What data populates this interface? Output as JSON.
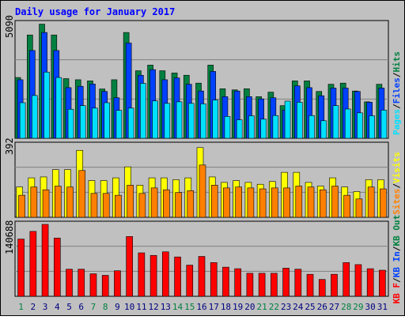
{
  "title": "Daily usage for January 2017",
  "colors": {
    "background": "#c0c0c0",
    "border": "#000000",
    "title_text": "#0000ff",
    "hits": "#008040",
    "files": "#0040ff",
    "pages": "#00e0ff",
    "visits": "#ffff00",
    "sites": "#ff8000",
    "kbf": "#ff0000",
    "weekend_label": "#008040",
    "weekday_label": "#000080"
  },
  "panels": {
    "top": {
      "max_label": "5090",
      "legend": [
        "Pages",
        "Files",
        "Hits"
      ],
      "sep": "/"
    },
    "middle": {
      "max_label": "392",
      "legend": [
        "Sites",
        "Visits"
      ],
      "sep": "/"
    },
    "bottom": {
      "max_label": "140688",
      "legend": [
        "KB F",
        "KB In",
        "KB Out"
      ],
      "sep": "/"
    }
  },
  "chart_data": {
    "type": "bar",
    "title": "Daily usage for January 2017",
    "categories": [
      "1",
      "2",
      "3",
      "4",
      "5",
      "6",
      "7",
      "8",
      "9",
      "10",
      "11",
      "12",
      "13",
      "14",
      "15",
      "16",
      "17",
      "18",
      "19",
      "20",
      "21",
      "22",
      "23",
      "24",
      "25",
      "26",
      "27",
      "28",
      "29",
      "30",
      "31"
    ],
    "weekend_days": [
      "1",
      "7",
      "8",
      "14",
      "15",
      "21",
      "22",
      "28",
      "29"
    ],
    "panels": [
      {
        "ymax": 5090,
        "series": [
          {
            "name": "Hits",
            "values": [
              2700,
              4590,
              5070,
              4590,
              2650,
              2600,
              2550,
              2190,
              2600,
              4700,
              3000,
              3250,
              3000,
              2900,
              2800,
              2450,
              3250,
              2200,
              2150,
              2200,
              1850,
              2050,
              1450,
              2550,
              2550,
              2080,
              2400,
              2450,
              2100,
              1620,
              2400
            ]
          },
          {
            "name": "Files",
            "values": [
              2600,
              3900,
              4700,
              3900,
              2250,
              2310,
              2410,
              2080,
              1800,
              4230,
              2800,
              3050,
              2600,
              2680,
              2400,
              2100,
              2970,
              1850,
              2100,
              1850,
              1750,
              1800,
              1250,
              2330,
              2250,
              1890,
              2230,
              2230,
              2080,
              1600,
              2230
            ]
          },
          {
            "name": "Pages",
            "values": [
              1580,
              1900,
              2940,
              2700,
              1290,
              1450,
              1340,
              1580,
              1240,
              1340,
              2440,
              1660,
              1550,
              1620,
              1550,
              1530,
              1700,
              970,
              820,
              1000,
              850,
              1010,
              1650,
              1600,
              1010,
              780,
              1450,
              1300,
              1130,
              1000,
              1250
            ]
          }
        ]
      },
      {
        "ymax": 392,
        "series": [
          {
            "name": "Visits",
            "values": [
              165,
              215,
              220,
              260,
              260,
              365,
              200,
              200,
              215,
              275,
              175,
              215,
              215,
              205,
              215,
              380,
              220,
              190,
              200,
              190,
              180,
              195,
              245,
              245,
              190,
              170,
              215,
              165,
              140,
              205,
              205
            ]
          },
          {
            "name": "Sites",
            "values": [
              120,
              165,
              150,
              170,
              165,
              255,
              130,
              130,
              120,
              175,
              130,
              160,
              150,
              135,
              145,
              285,
              175,
              160,
              165,
              160,
              155,
              160,
              160,
              170,
              165,
              150,
              170,
              120,
              100,
              165,
              155
            ]
          }
        ]
      },
      {
        "ymax": 140688,
        "series": [
          {
            "name": "KB F",
            "values": [
              112000,
              127000,
              140688,
              114000,
              53000,
              53000,
              44000,
              41000,
              50000,
              117000,
              85000,
              80000,
              87000,
              77000,
              61000,
              78000,
              66000,
              57000,
              54000,
              45000,
              45000,
              45000,
              55000,
              53000,
              43000,
              33000,
              43000,
              66000,
              62000,
              54000,
              51000
            ]
          }
        ]
      }
    ]
  }
}
